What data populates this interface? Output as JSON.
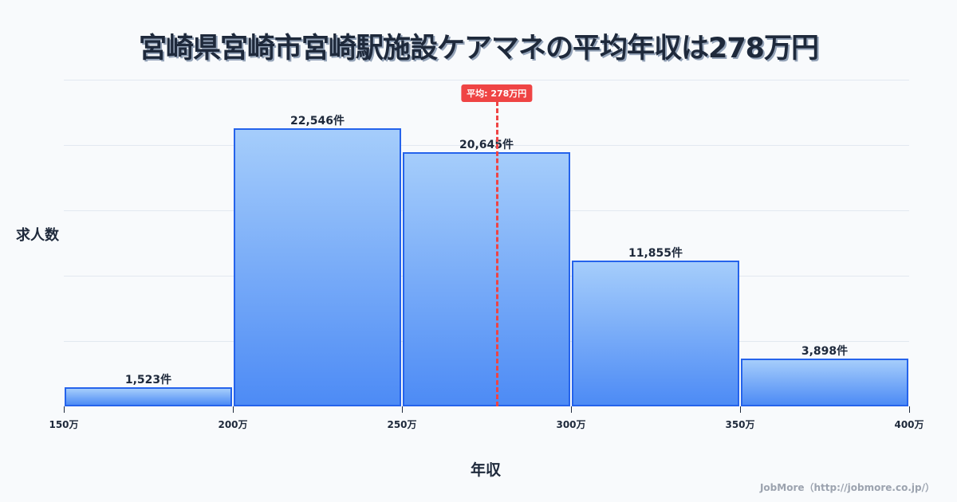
{
  "title": "宮崎県宮崎市宮崎駅施設ケアマネの平均年収は278万円",
  "footer": "JobMore（http://jobmore.co.jp/）",
  "colors": {
    "bar_border": "#2563eb",
    "bar_top": "#a5cdfb",
    "bar_bottom": "#4d8bf5",
    "average_line": "#ef4444",
    "text": "#1e293b",
    "grid": "#e2e8f0"
  },
  "chart_data": {
    "type": "bar",
    "title": "宮崎県宮崎市宮崎駅施設ケアマネの平均年収は278万円",
    "xlabel": "年収",
    "ylabel": "求人数",
    "bins": [
      [
        150,
        200
      ],
      [
        200,
        250
      ],
      [
        250,
        300
      ],
      [
        300,
        350
      ],
      [
        350,
        400
      ]
    ],
    "categories": [
      "150-200万",
      "200-250万",
      "250-300万",
      "300-350万",
      "350-400万"
    ],
    "values": [
      1523,
      22546,
      20645,
      11855,
      3898
    ],
    "value_labels": [
      "1,523件",
      "22,546件",
      "20,645件",
      "11,855件",
      "3,898件"
    ],
    "x_ticks": [
      "150万",
      "200万",
      "250万",
      "300万",
      "350万",
      "400万"
    ],
    "x_range": [
      150,
      400
    ],
    "ylim": [
      0,
      26500
    ],
    "grid": true,
    "average": {
      "value": 278,
      "label": "平均: 278万円"
    }
  }
}
